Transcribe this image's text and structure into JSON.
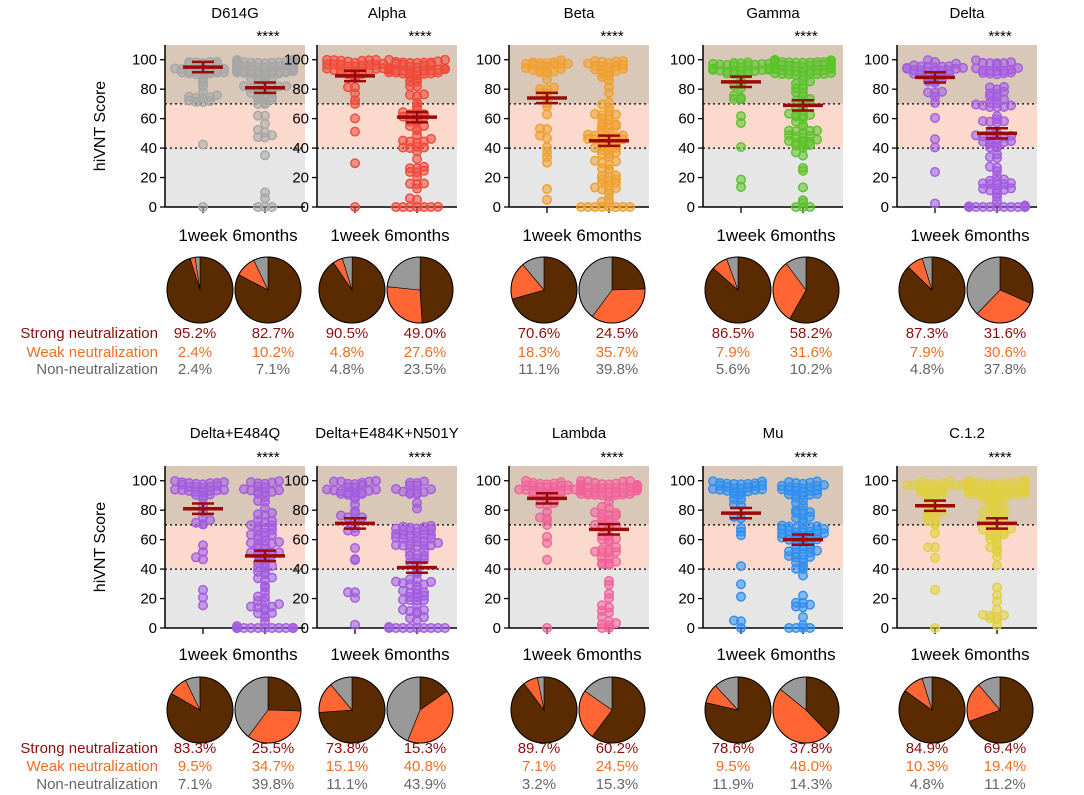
{
  "figure": {
    "ylabel": "hiVNT Score",
    "significance": "****",
    "time_labels": [
      "1week",
      "6months"
    ],
    "legend": {
      "strong": "Strong neutralization",
      "weak": "Weak neutralization",
      "non": "Non-neutralization"
    },
    "colors": {
      "strong": "#8b0d0d",
      "weak": "#f26d21",
      "non": "#666666",
      "pie_strong": "#5a2a00",
      "pie_weak": "#ff6633",
      "pie_non": "#999999",
      "band_strong": "#d9c8b8",
      "band_weak": "#fbd9cc",
      "band_non": "#e6e6e6",
      "mean_bar": "#9b0a0a"
    }
  },
  "chart_data": {
    "type": "scatter",
    "ylim": [
      0,
      110
    ],
    "yticks": [
      0,
      20,
      40,
      60,
      80,
      100
    ],
    "threshold_lines": [
      40,
      70
    ],
    "variants": [
      {
        "name": "D614G",
        "color": "#a6a6a6",
        "mean": [
          95.0,
          81.0
        ],
        "pie": [
          [
            95.2,
            2.4,
            2.4
          ],
          [
            82.7,
            10.2,
            7.1
          ]
        ],
        "labels": [
          [
            "95.2%",
            "2.4%",
            "2.4%"
          ],
          [
            "82.7%",
            "10.2%",
            "7.1%"
          ]
        ]
      },
      {
        "name": "Alpha",
        "color": "#f04a3a",
        "mean": [
          89.0,
          61.0
        ],
        "pie": [
          [
            90.5,
            4.8,
            4.8
          ],
          [
            49.0,
            27.6,
            23.5
          ]
        ],
        "labels": [
          [
            "90.5%",
            "4.8%",
            "4.8%"
          ],
          [
            "49.0%",
            "27.6%",
            "23.5%"
          ]
        ]
      },
      {
        "name": "Beta",
        "color": "#f0a030",
        "mean": [
          74.0,
          45.0
        ],
        "pie": [
          [
            70.6,
            18.3,
            11.1
          ],
          [
            24.5,
            35.7,
            39.8
          ]
        ],
        "labels": [
          [
            "70.6%",
            "18.3%",
            "11.1%"
          ],
          [
            "24.5%",
            "35.7%",
            "39.8%"
          ]
        ]
      },
      {
        "name": "Gamma",
        "color": "#5cc22c",
        "mean": [
          85.0,
          69.0
        ],
        "pie": [
          [
            86.5,
            7.9,
            5.6
          ],
          [
            58.2,
            31.6,
            10.2
          ]
        ],
        "labels": [
          [
            "86.5%",
            "7.9%",
            "5.6%"
          ],
          [
            "58.2%",
            "31.6%",
            "10.2%"
          ]
        ]
      },
      {
        "name": "Delta",
        "color": "#a35ce0",
        "mean": [
          88.0,
          50.0
        ],
        "pie": [
          [
            87.3,
            7.9,
            4.8
          ],
          [
            31.6,
            30.6,
            37.8
          ]
        ],
        "labels": [
          [
            "87.3%",
            "7.9%",
            "4.8%"
          ],
          [
            "31.6%",
            "30.6%",
            "37.8%"
          ]
        ]
      },
      {
        "name": "Delta+E484Q",
        "color": "#a35ce0",
        "mean": [
          81.0,
          49.0
        ],
        "pie": [
          [
            83.3,
            9.5,
            7.1
          ],
          [
            25.5,
            34.7,
            39.8
          ]
        ],
        "labels": [
          [
            "83.3%",
            "9.5%",
            "7.1%"
          ],
          [
            "25.5%",
            "34.7%",
            "39.8%"
          ]
        ]
      },
      {
        "name": "Delta+E484K+N501Y",
        "color": "#a35ce0",
        "mean": [
          71.0,
          41.0
        ],
        "pie": [
          [
            73.8,
            15.1,
            11.1
          ],
          [
            15.3,
            40.8,
            43.9
          ]
        ],
        "labels": [
          [
            "73.8%",
            "15.1%",
            "11.1%"
          ],
          [
            "15.3%",
            "40.8%",
            "43.9%"
          ]
        ]
      },
      {
        "name": "Lambda",
        "color": "#f0649a",
        "mean": [
          88.0,
          67.0
        ],
        "pie": [
          [
            89.7,
            7.1,
            3.2
          ],
          [
            60.2,
            24.5,
            15.3
          ]
        ],
        "labels": [
          [
            "89.7%",
            "7.1%",
            "3.2%"
          ],
          [
            "60.2%",
            "24.5%",
            "15.3%"
          ]
        ]
      },
      {
        "name": "Mu",
        "color": "#2f8ff0",
        "mean": [
          78.0,
          60.0
        ],
        "pie": [
          [
            78.6,
            9.5,
            11.9
          ],
          [
            37.8,
            48.0,
            14.3
          ]
        ],
        "labels": [
          [
            "78.6%",
            "9.5%",
            "11.9%"
          ],
          [
            "37.8%",
            "48.0%",
            "14.3%"
          ]
        ]
      },
      {
        "name": "C.1.2",
        "color": "#e0d040",
        "mean": [
          83.0,
          71.0
        ],
        "pie": [
          [
            84.9,
            10.3,
            4.8
          ],
          [
            69.4,
            19.4,
            11.2
          ]
        ],
        "labels": [
          [
            "84.9%",
            "10.3%",
            "4.8%"
          ],
          [
            "69.4%",
            "19.4%",
            "11.2%"
          ]
        ]
      }
    ]
  }
}
